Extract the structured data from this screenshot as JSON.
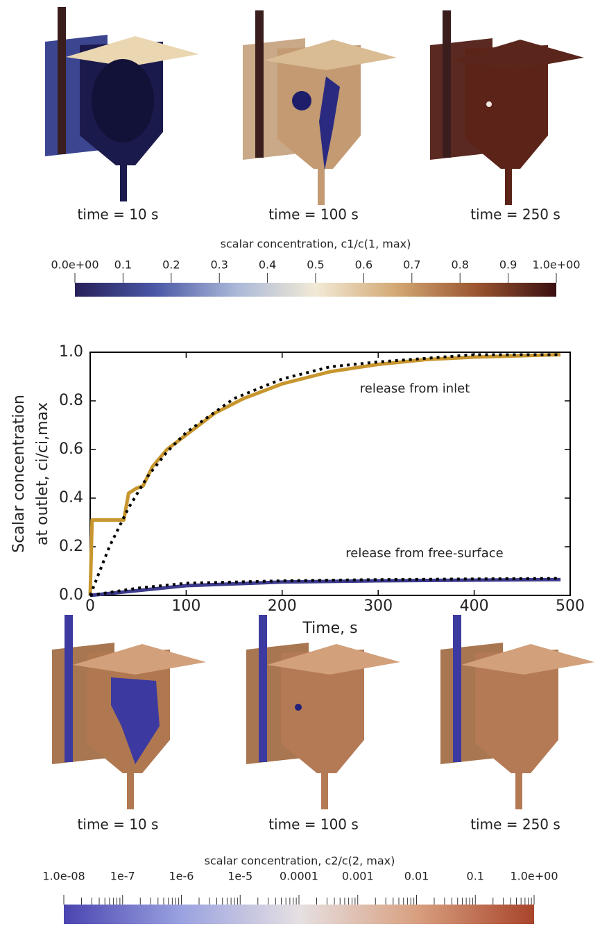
{
  "top_renders": {
    "labels": [
      "time = 10 s",
      "time = 100 s",
      "time = 250 s"
    ]
  },
  "colorbar_c1": {
    "title": "scalar concentration, c1/c(1, max)",
    "lim": [
      0,
      1
    ],
    "ticks": [
      {
        "value": 0,
        "label": "0.0e+00"
      },
      0.1,
      0.2,
      0.3,
      0.4,
      0.5,
      0.6,
      0.7,
      0.8,
      0.9,
      {
        "value": 1,
        "label": "1.0e+00"
      }
    ],
    "colors": [
      "#27205a",
      "#4a58a6",
      "#a9b7d8",
      "#f2ead6",
      "#d3a874",
      "#9b5530",
      "#3a0f10"
    ]
  },
  "chart_data": {
    "type": "line",
    "x_label": "Time, s",
    "y_label": [
      "Scalar concentration",
      "at outlet, ci/ci,max"
    ],
    "annotations": [
      "release from inlet",
      "release from free-surface"
    ],
    "xlim": [
      0,
      500
    ],
    "ylim": [
      0,
      1
    ],
    "xticks": [
      0,
      100,
      200,
      300,
      400,
      500
    ],
    "yticks": [
      {
        "value": 0,
        "label": "0.0"
      },
      0.2,
      0.4,
      0.6,
      0.8,
      {
        "value": 1,
        "label": "1.0"
      }
    ],
    "series": [
      {
        "color": "#c8962e",
        "style": "solid",
        "x": [
          0,
          2,
          35,
          40,
          48,
          55,
          65,
          80,
          100,
          130,
          160,
          200,
          250,
          300,
          350,
          400,
          490
        ],
        "values": [
          0,
          0.31,
          0.31,
          0.42,
          0.44,
          0.45,
          0.53,
          0.6,
          0.66,
          0.75,
          0.81,
          0.87,
          0.92,
          0.95,
          0.97,
          0.98,
          0.99
        ]
      },
      {
        "color": "#000000",
        "style": "dotted",
        "x": [
          0,
          20,
          40,
          60,
          80,
          100,
          150,
          200,
          250,
          300,
          400,
          490
        ],
        "values": [
          0,
          0.2,
          0.36,
          0.49,
          0.59,
          0.67,
          0.81,
          0.89,
          0.94,
          0.96,
          0.99,
          0.99
        ]
      },
      {
        "color": "#3c3a8c",
        "style": "solid",
        "x": [
          0,
          50,
          100,
          200,
          300,
          490
        ],
        "values": [
          0,
          0.02,
          0.04,
          0.055,
          0.06,
          0.065
        ]
      },
      {
        "color": "#000000",
        "style": "dotted",
        "x": [
          0,
          50,
          100,
          200,
          300,
          490
        ],
        "values": [
          0,
          0.03,
          0.05,
          0.06,
          0.065,
          0.07
        ]
      }
    ]
  },
  "bottom_renders": {
    "labels": [
      "time = 10 s",
      "time = 100 s",
      "time = 250 s"
    ]
  },
  "colorbar_c2": {
    "title": "scalar concentration, c2/c(2, max)",
    "log_scale": true,
    "lim": [
      1e-08,
      1
    ],
    "ticks": [
      {
        "value": 1e-08,
        "label": "1.0e-08"
      },
      {
        "value": 1e-07,
        "label": "1e-7"
      },
      {
        "value": 1e-06,
        "label": "1e-6"
      },
      {
        "value": 1e-05,
        "label": "1e-5"
      },
      0.0001,
      0.001,
      0.01,
      0.1,
      {
        "value": 1,
        "label": "1.0e+00"
      }
    ],
    "colors": [
      "#4a44b0",
      "#9aa2e0",
      "#e6e0e2",
      "#d8a080",
      "#a8442a"
    ]
  }
}
